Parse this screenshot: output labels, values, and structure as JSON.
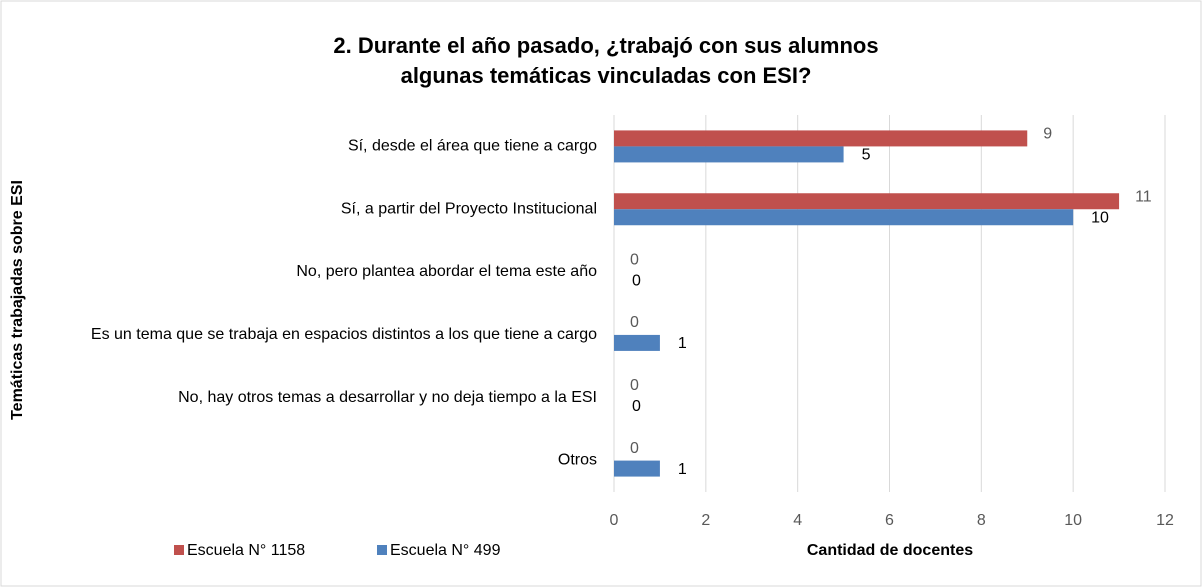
{
  "chart_data": {
    "type": "barh",
    "title": [
      "2. Durante el año pasado, ¿trabajó con sus alumnos",
      "algunas temáticas vinculadas con ESI?"
    ],
    "x_label": "Cantidad de docentes",
    "y_label": "Temáticas trabajadas sobre ESI",
    "categories": [
      "Sí, desde el área que tiene a cargo",
      "Sí, a partir del Proyecto Institucional",
      "No, pero plantea abordar el tema este año",
      "Es un tema que se trabaja en espacios distintos a los que tiene a cargo",
      "No, hay otros temas a desarrollar y no deja tiempo a la ESI",
      "Otros"
    ],
    "series": [
      {
        "name": "Escuela N° 1158",
        "color": "#c0504d",
        "label_color": "#595959",
        "values": [
          9,
          11,
          0,
          0,
          0,
          0
        ]
      },
      {
        "name": "Escuela N° 499",
        "color": "#4f81bd",
        "label_color": "#000000",
        "values": [
          5,
          10,
          0,
          1,
          0,
          1
        ]
      }
    ],
    "xlim": [
      0,
      12
    ],
    "xticks": [
      0,
      2,
      4,
      6,
      8,
      10,
      12
    ],
    "grid": true,
    "legend": "bottom-left"
  }
}
